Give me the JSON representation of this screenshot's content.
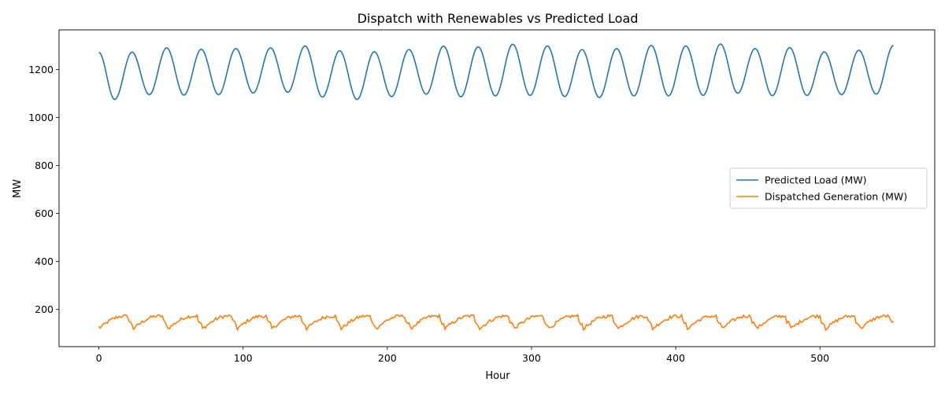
{
  "chart_data": {
    "type": "line",
    "title": "Dispatch with Renewables vs Predicted Load",
    "xlabel": "Hour",
    "ylabel": "MW",
    "xlim": [
      -27.6,
      579.6
    ],
    "ylim": [
      45,
      1365
    ],
    "x_ticks": [
      0,
      100,
      200,
      300,
      400,
      500
    ],
    "y_ticks": [
      200,
      400,
      600,
      800,
      1000,
      1200
    ],
    "grid": false,
    "legend_position": "center-right",
    "series": [
      {
        "name": "Predicted Load (MW)",
        "color": "#1f77b4",
        "period_hours": 24,
        "x_start": 0,
        "x_end": 551,
        "baseline": 1185,
        "amplitude": 97,
        "phase_max_hour": 23,
        "peaks": [
          [
            23,
            1272
          ],
          [
            47,
            1290
          ],
          [
            71,
            1284
          ],
          [
            95,
            1287
          ],
          [
            119,
            1290
          ],
          [
            143,
            1298
          ],
          [
            167,
            1278
          ],
          [
            191,
            1274
          ],
          [
            215,
            1283
          ],
          [
            239,
            1297
          ],
          [
            263,
            1294
          ],
          [
            287,
            1305
          ],
          [
            311,
            1298
          ],
          [
            335,
            1283
          ],
          [
            359,
            1287
          ],
          [
            383,
            1300
          ],
          [
            407,
            1298
          ],
          [
            431,
            1306
          ],
          [
            455,
            1287
          ],
          [
            479,
            1291
          ],
          [
            503,
            1273
          ],
          [
            527,
            1280
          ],
          [
            551,
            1300
          ]
        ],
        "troughs": [
          [
            11,
            1075
          ],
          [
            35,
            1095
          ],
          [
            59,
            1093
          ],
          [
            83,
            1095
          ],
          [
            107,
            1102
          ],
          [
            131,
            1105
          ],
          [
            155,
            1085
          ],
          [
            179,
            1075
          ],
          [
            203,
            1087
          ],
          [
            227,
            1097
          ],
          [
            251,
            1086
          ],
          [
            275,
            1090
          ],
          [
            299,
            1092
          ],
          [
            323,
            1087
          ],
          [
            347,
            1083
          ],
          [
            371,
            1090
          ],
          [
            395,
            1090
          ],
          [
            419,
            1092
          ],
          [
            443,
            1101
          ],
          [
            467,
            1091
          ],
          [
            491,
            1092
          ],
          [
            515,
            1095
          ],
          [
            539,
            1097
          ]
        ],
        "start_value": [
          0,
          1271
        ]
      },
      {
        "name": "Dispatched Generation (MW)",
        "color": "#ff7f0e",
        "period_hours": 24,
        "x_start": 0,
        "x_end": 551,
        "daily_low": 120,
        "daily_high": 172,
        "daily_drop_hour": 23,
        "start_value": [
          0,
          130
        ],
        "end_value": [
          551,
          150
        ]
      }
    ]
  }
}
